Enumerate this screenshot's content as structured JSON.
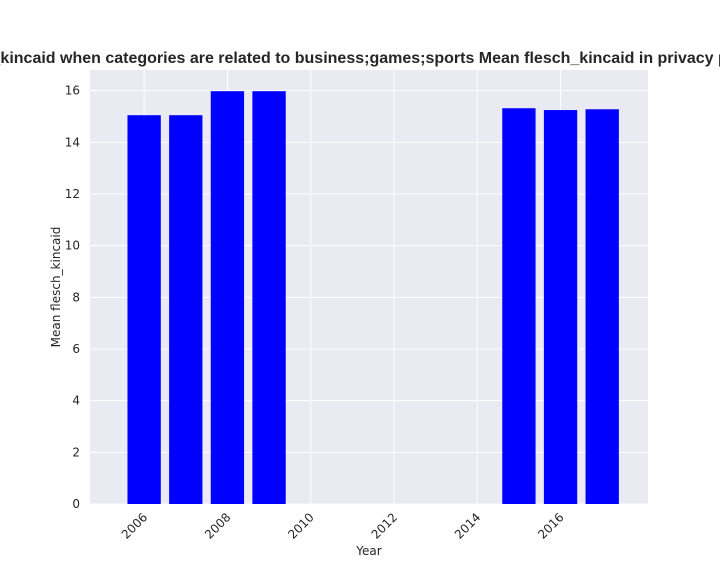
{
  "chart_data": {
    "type": "bar",
    "title": "Mean flesch_kincaid when categories are related to business;games;sports Mean flesch_kincaid in privacy policies by year",
    "xlabel": "Year",
    "ylabel": "Mean flesch_kincaid",
    "x": [
      2006,
      2007,
      2008,
      2009,
      2015,
      2016,
      2017
    ],
    "values": [
      15.05,
      15.05,
      15.98,
      15.98,
      15.32,
      15.25,
      15.28
    ],
    "xlim": [
      2004.7,
      2018.1
    ],
    "ylim": [
      0,
      16.8
    ],
    "xticks": [
      "2006",
      "2008",
      "2010",
      "2012",
      "2014",
      "2016"
    ],
    "yticks": [
      "0",
      "2",
      "4",
      "6",
      "8",
      "10",
      "12",
      "14",
      "16"
    ],
    "bar_color": "#0000ff",
    "background": "#eaeaf2",
    "grid": true,
    "legend": "none"
  }
}
